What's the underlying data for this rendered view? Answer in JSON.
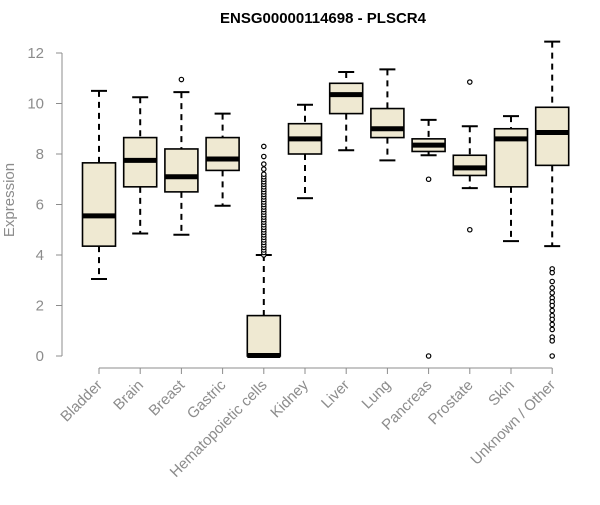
{
  "chart_data": {
    "type": "boxplot",
    "title": "ENSG00000114698 - PLSCR4",
    "xlabel": "",
    "ylabel": "Expression",
    "ylim": [
      0,
      12.5
    ],
    "yticks": [
      0,
      2,
      4,
      6,
      8,
      10,
      12
    ],
    "grid": false,
    "legend": "none",
    "box_color": "#efe9d2",
    "categories": [
      "Bladder",
      "Brain",
      "Breast",
      "Gastric",
      "Hematopoietic cells",
      "Kidney",
      "Liver",
      "Lung",
      "Pancreas",
      "Prostate",
      "Skin",
      "Unknown / Other"
    ],
    "boxes": [
      {
        "category": "Bladder",
        "whisker_low": 3.05,
        "q1": 4.35,
        "median": 5.55,
        "q3": 7.65,
        "whisker_high": 10.5,
        "outliers": []
      },
      {
        "category": "Brain",
        "whisker_low": 4.85,
        "q1": 6.7,
        "median": 7.75,
        "q3": 8.65,
        "whisker_high": 10.25,
        "outliers": []
      },
      {
        "category": "Breast",
        "whisker_low": 4.8,
        "q1": 6.5,
        "median": 7.1,
        "q3": 8.2,
        "whisker_high": 10.45,
        "outliers": [
          10.95
        ]
      },
      {
        "category": "Gastric",
        "whisker_low": 5.95,
        "q1": 7.35,
        "median": 7.8,
        "q3": 8.65,
        "whisker_high": 9.6,
        "outliers": []
      },
      {
        "category": "Hematopoietic cells",
        "whisker_low": 0,
        "q1": 0,
        "median": 0.02,
        "q3": 1.6,
        "whisker_high": 4.0,
        "outliers": [
          4.0,
          4.1,
          4.2,
          4.3,
          4.4,
          4.5,
          4.6,
          4.7,
          4.8,
          4.9,
          5.0,
          5.1,
          5.2,
          5.3,
          5.4,
          5.5,
          5.6,
          5.7,
          5.8,
          5.9,
          6.0,
          6.1,
          6.2,
          6.3,
          6.4,
          6.5,
          6.6,
          6.7,
          6.8,
          6.9,
          7.0,
          7.1,
          7.2,
          7.4,
          7.6,
          7.9,
          8.3
        ]
      },
      {
        "category": "Kidney",
        "whisker_low": 6.25,
        "q1": 8.0,
        "median": 8.6,
        "q3": 9.2,
        "whisker_high": 9.95,
        "outliers": []
      },
      {
        "category": "Liver",
        "whisker_low": 8.15,
        "q1": 9.6,
        "median": 10.35,
        "q3": 10.8,
        "whisker_high": 11.25,
        "outliers": []
      },
      {
        "category": "Lung",
        "whisker_low": 7.75,
        "q1": 8.65,
        "median": 9.0,
        "q3": 9.8,
        "whisker_high": 11.35,
        "outliers": []
      },
      {
        "category": "Pancreas",
        "whisker_low": 7.95,
        "q1": 8.1,
        "median": 8.35,
        "q3": 8.6,
        "whisker_high": 9.35,
        "outliers": [
          7.0,
          0.0
        ]
      },
      {
        "category": "Prostate",
        "whisker_low": 6.65,
        "q1": 7.15,
        "median": 7.45,
        "q3": 7.95,
        "whisker_high": 9.1,
        "outliers": [
          10.85,
          5.0
        ]
      },
      {
        "category": "Skin",
        "whisker_low": 4.55,
        "q1": 6.7,
        "median": 8.6,
        "q3": 9.0,
        "whisker_high": 9.5,
        "outliers": []
      },
      {
        "category": "Unknown / Other",
        "whisker_low": 4.35,
        "q1": 7.55,
        "median": 8.85,
        "q3": 9.85,
        "whisker_high": 12.45,
        "outliers": [
          3.45,
          3.3,
          2.95,
          2.7,
          2.5,
          2.3,
          2.15,
          2.0,
          1.8,
          1.6,
          1.45,
          1.25,
          1.05,
          0.75,
          0.6,
          0.0
        ]
      }
    ]
  }
}
